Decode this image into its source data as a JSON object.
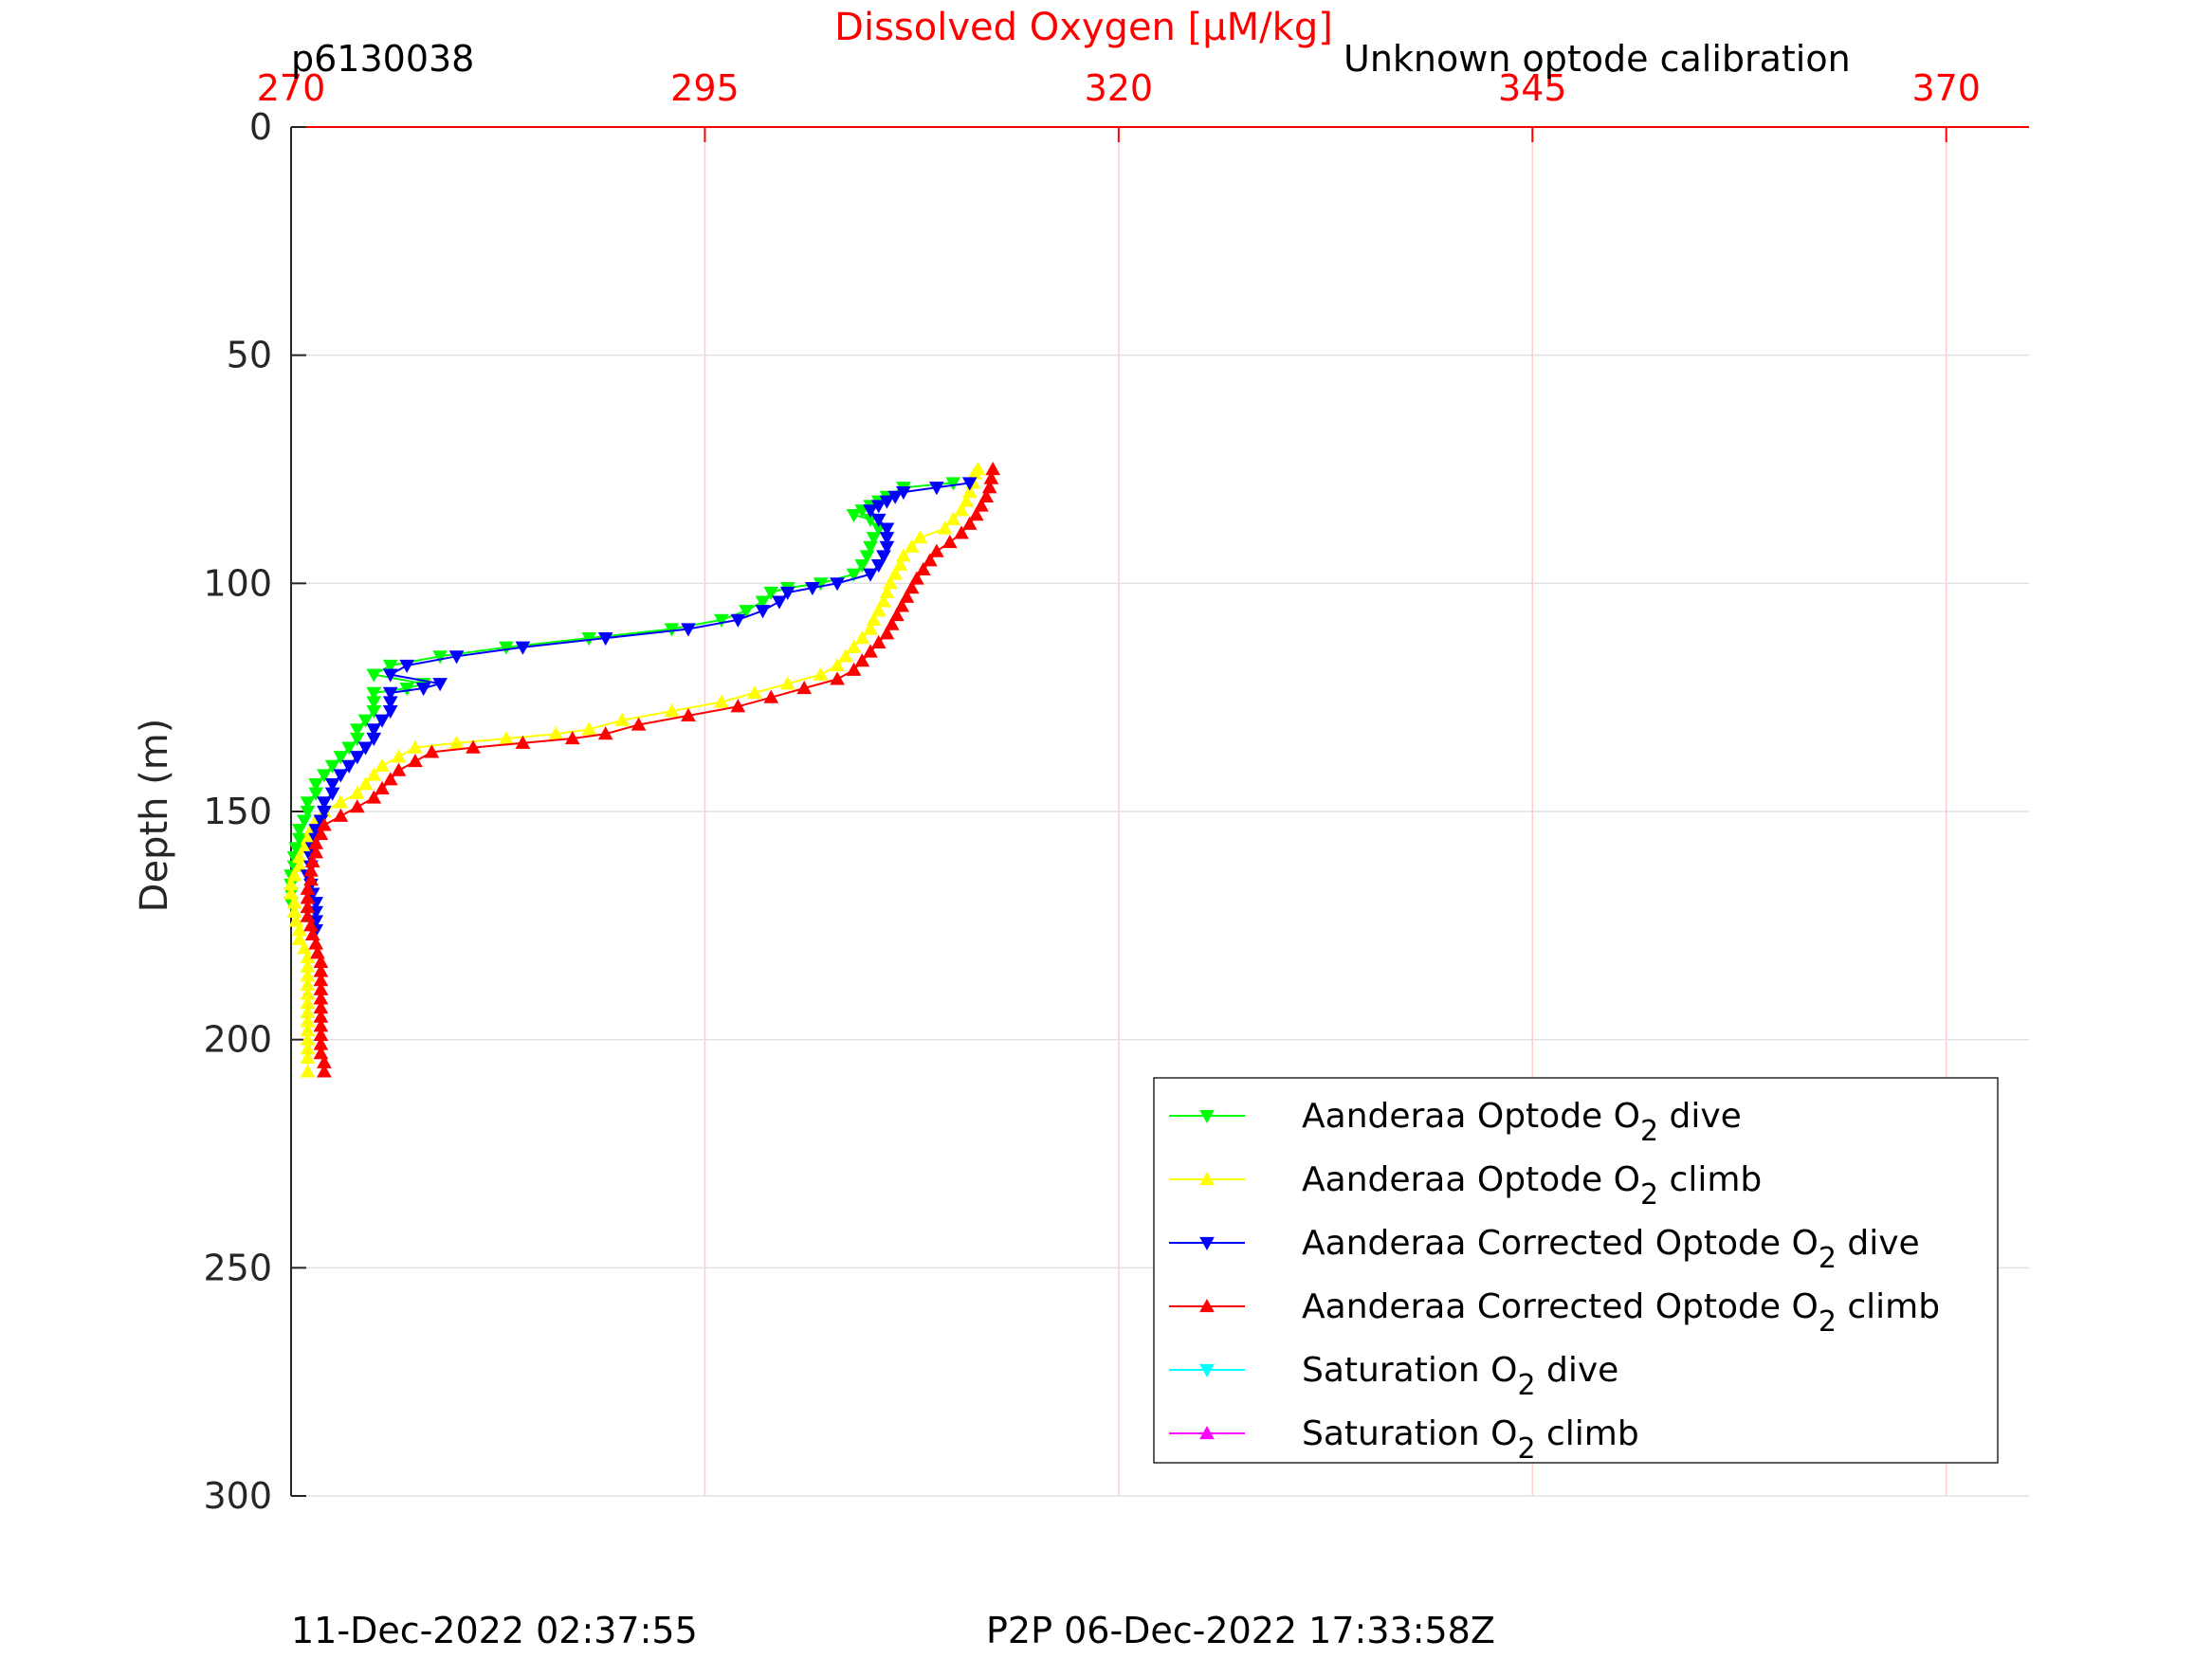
{
  "header": {
    "profile_id": "p6130038",
    "calibration_note": "Unknown optode calibration"
  },
  "footer": {
    "plot_time": "11-Dec-2022 02:37:55",
    "p2p_time": "P2P 06-Dec-2022 17:33:58Z"
  },
  "chart_data": {
    "type": "line",
    "title": "",
    "xlabel": "Dissolved Oxygen [μM/kg]",
    "ylabel": "Depth (m)",
    "xlim": [
      270,
      375
    ],
    "ylim": [
      0,
      300
    ],
    "y_reversed": true,
    "x_axis_position": "top",
    "xticks": [
      270,
      295,
      320,
      345,
      370
    ],
    "yticks": [
      0,
      50,
      100,
      150,
      200,
      250,
      300
    ],
    "grid": true,
    "legend_position": "bottom-right",
    "series": [
      {
        "name": "Aanderaa Optode O2 dive",
        "label_base": "Aanderaa Optode O",
        "label_sub": "2",
        "label_suffix": " dive",
        "color": "#00ff00",
        "marker": "triangle-down",
        "points": [
          [
            310.0,
            78
          ],
          [
            307.0,
            79
          ],
          [
            306.0,
            81
          ],
          [
            305.5,
            82
          ],
          [
            305.0,
            83
          ],
          [
            304.5,
            84
          ],
          [
            304.0,
            85
          ],
          [
            305.0,
            86
          ],
          [
            305.5,
            88
          ],
          [
            305.2,
            90
          ],
          [
            305.0,
            92
          ],
          [
            304.8,
            94
          ],
          [
            304.5,
            96
          ],
          [
            304.0,
            98
          ],
          [
            302.0,
            100
          ],
          [
            300.0,
            101
          ],
          [
            299.0,
            102
          ],
          [
            298.5,
            104
          ],
          [
            297.5,
            106
          ],
          [
            296.0,
            108
          ],
          [
            293.0,
            110
          ],
          [
            288.0,
            112
          ],
          [
            283.0,
            114
          ],
          [
            279.0,
            116
          ],
          [
            276.0,
            118
          ],
          [
            275.0,
            120
          ],
          [
            278.0,
            122
          ],
          [
            277.0,
            123
          ],
          [
            275.0,
            124
          ],
          [
            275.0,
            126
          ],
          [
            275.0,
            128
          ],
          [
            274.5,
            130
          ],
          [
            274.0,
            132
          ],
          [
            274.0,
            134
          ],
          [
            273.5,
            136
          ],
          [
            273.0,
            138
          ],
          [
            272.5,
            140
          ],
          [
            272.0,
            142
          ],
          [
            271.5,
            144
          ],
          [
            271.5,
            146
          ],
          [
            271.0,
            148
          ],
          [
            271.0,
            150
          ],
          [
            270.8,
            152
          ],
          [
            270.5,
            154
          ],
          [
            270.5,
            156
          ],
          [
            270.3,
            158
          ],
          [
            270.2,
            160
          ],
          [
            270.2,
            162
          ],
          [
            270.0,
            164
          ],
          [
            270.0,
            166
          ],
          [
            270.0,
            168
          ],
          [
            270.0,
            170
          ]
        ]
      },
      {
        "name": "Aanderaa Optode O2 climb",
        "label_base": "Aanderaa Optode O",
        "label_sub": "2",
        "label_suffix": " climb",
        "color": "#ffff00",
        "marker": "triangle-up",
        "points": [
          [
            271.0,
            207
          ],
          [
            271.0,
            204
          ],
          [
            271.0,
            202
          ],
          [
            271.0,
            200
          ],
          [
            271.0,
            198
          ],
          [
            271.0,
            196
          ],
          [
            271.0,
            194
          ],
          [
            271.0,
            192
          ],
          [
            271.0,
            190
          ],
          [
            271.0,
            188
          ],
          [
            271.0,
            186
          ],
          [
            271.0,
            184
          ],
          [
            271.0,
            182
          ],
          [
            270.8,
            180
          ],
          [
            270.5,
            178
          ],
          [
            270.5,
            176
          ],
          [
            270.3,
            174
          ],
          [
            270.2,
            172
          ],
          [
            270.2,
            170
          ],
          [
            270.0,
            168
          ],
          [
            270.0,
            166
          ],
          [
            270.2,
            164
          ],
          [
            270.5,
            162
          ],
          [
            270.5,
            160
          ],
          [
            270.8,
            158
          ],
          [
            271.0,
            156
          ],
          [
            271.2,
            154
          ],
          [
            271.5,
            152
          ],
          [
            272.0,
            150
          ],
          [
            273.0,
            148
          ],
          [
            274.0,
            146
          ],
          [
            274.5,
            144
          ],
          [
            275.0,
            142
          ],
          [
            275.5,
            140
          ],
          [
            276.5,
            138
          ],
          [
            277.5,
            136
          ],
          [
            280.0,
            135
          ],
          [
            283.0,
            134
          ],
          [
            286.0,
            133
          ],
          [
            288.0,
            132
          ],
          [
            290.0,
            130
          ],
          [
            293.0,
            128
          ],
          [
            296.0,
            126
          ],
          [
            298.0,
            124
          ],
          [
            300.0,
            122
          ],
          [
            302.0,
            120
          ],
          [
            303.0,
            118
          ],
          [
            303.5,
            116
          ],
          [
            304.0,
            114
          ],
          [
            304.5,
            112
          ],
          [
            305.0,
            110
          ],
          [
            305.2,
            108
          ],
          [
            305.5,
            106
          ],
          [
            305.8,
            104
          ],
          [
            306.0,
            102
          ],
          [
            306.2,
            100
          ],
          [
            306.5,
            98
          ],
          [
            306.8,
            96
          ],
          [
            307.0,
            94
          ],
          [
            307.5,
            92
          ],
          [
            308.0,
            90
          ],
          [
            309.5,
            88
          ],
          [
            310.0,
            86
          ],
          [
            310.5,
            84
          ],
          [
            310.8,
            82
          ],
          [
            311.0,
            80
          ],
          [
            311.2,
            78
          ],
          [
            311.3,
            76
          ],
          [
            311.5,
            75
          ]
        ]
      },
      {
        "name": "Aanderaa Corrected Optode O2 dive",
        "label_base": "Aanderaa Corrected Optode O",
        "label_sub": "2",
        "label_suffix": " dive",
        "color": "#0000ff",
        "marker": "triangle-down",
        "points": [
          [
            311.0,
            78
          ],
          [
            309.0,
            79
          ],
          [
            307.0,
            80
          ],
          [
            306.5,
            81
          ],
          [
            306.0,
            82
          ],
          [
            305.5,
            83
          ],
          [
            305.0,
            84
          ],
          [
            305.5,
            86
          ],
          [
            306.0,
            88
          ],
          [
            306.0,
            90
          ],
          [
            306.0,
            92
          ],
          [
            305.8,
            94
          ],
          [
            305.5,
            96
          ],
          [
            305.0,
            98
          ],
          [
            303.0,
            100
          ],
          [
            301.5,
            101
          ],
          [
            300.0,
            102
          ],
          [
            299.5,
            104
          ],
          [
            298.5,
            106
          ],
          [
            297.0,
            108
          ],
          [
            294.0,
            110
          ],
          [
            289.0,
            112
          ],
          [
            284.0,
            114
          ],
          [
            280.0,
            116
          ],
          [
            277.0,
            118
          ],
          [
            276.0,
            120
          ],
          [
            279.0,
            122
          ],
          [
            278.0,
            123
          ],
          [
            276.0,
            124
          ],
          [
            276.0,
            126
          ],
          [
            276.0,
            128
          ],
          [
            275.5,
            130
          ],
          [
            275.0,
            132
          ],
          [
            275.0,
            134
          ],
          [
            274.5,
            136
          ],
          [
            274.0,
            138
          ],
          [
            273.5,
            140
          ],
          [
            273.0,
            142
          ],
          [
            272.5,
            144
          ],
          [
            272.5,
            146
          ],
          [
            272.0,
            148
          ],
          [
            272.0,
            150
          ],
          [
            271.8,
            152
          ],
          [
            271.5,
            154
          ],
          [
            271.5,
            156
          ],
          [
            271.3,
            158
          ],
          [
            271.2,
            160
          ],
          [
            271.2,
            162
          ],
          [
            271.0,
            164
          ],
          [
            271.2,
            166
          ],
          [
            271.3,
            168
          ],
          [
            271.5,
            170
          ],
          [
            271.5,
            172
          ],
          [
            271.5,
            174
          ],
          [
            271.5,
            176
          ]
        ]
      },
      {
        "name": "Aanderaa Corrected Optode O2 climb",
        "label_base": "Aanderaa Corrected Optode O",
        "label_sub": "2",
        "label_suffix": " climb",
        "color": "#ff0000",
        "marker": "triangle-up",
        "points": [
          [
            272.0,
            207
          ],
          [
            272.0,
            205
          ],
          [
            271.8,
            203
          ],
          [
            271.8,
            201
          ],
          [
            271.8,
            199
          ],
          [
            271.8,
            197
          ],
          [
            271.8,
            195
          ],
          [
            271.8,
            193
          ],
          [
            271.8,
            191
          ],
          [
            271.8,
            189
          ],
          [
            271.8,
            187
          ],
          [
            271.8,
            185
          ],
          [
            271.8,
            183
          ],
          [
            271.6,
            181
          ],
          [
            271.5,
            179
          ],
          [
            271.3,
            177
          ],
          [
            271.2,
            175
          ],
          [
            271.0,
            173
          ],
          [
            271.0,
            171
          ],
          [
            271.0,
            169
          ],
          [
            271.0,
            167
          ],
          [
            271.2,
            165
          ],
          [
            271.2,
            163
          ],
          [
            271.3,
            161
          ],
          [
            271.5,
            159
          ],
          [
            271.5,
            157
          ],
          [
            271.8,
            155
          ],
          [
            272.0,
            153
          ],
          [
            273.0,
            151
          ],
          [
            274.0,
            149
          ],
          [
            275.0,
            147
          ],
          [
            275.5,
            145
          ],
          [
            276.0,
            143
          ],
          [
            276.5,
            141
          ],
          [
            277.5,
            139
          ],
          [
            278.5,
            137
          ],
          [
            281.0,
            136
          ],
          [
            284.0,
            135
          ],
          [
            287.0,
            134
          ],
          [
            289.0,
            133
          ],
          [
            291.0,
            131
          ],
          [
            294.0,
            129
          ],
          [
            297.0,
            127
          ],
          [
            299.0,
            125
          ],
          [
            301.0,
            123
          ],
          [
            303.0,
            121
          ],
          [
            304.0,
            119
          ],
          [
            304.5,
            117
          ],
          [
            305.0,
            115
          ],
          [
            305.5,
            113
          ],
          [
            306.0,
            111
          ],
          [
            306.3,
            109
          ],
          [
            306.6,
            107
          ],
          [
            306.9,
            105
          ],
          [
            307.2,
            103
          ],
          [
            307.5,
            101
          ],
          [
            307.8,
            99
          ],
          [
            308.2,
            97
          ],
          [
            308.6,
            95
          ],
          [
            309.0,
            93
          ],
          [
            309.8,
            91
          ],
          [
            310.5,
            89
          ],
          [
            311.0,
            87
          ],
          [
            311.4,
            85
          ],
          [
            311.7,
            83
          ],
          [
            312.0,
            81
          ],
          [
            312.2,
            79
          ],
          [
            312.3,
            77
          ],
          [
            312.4,
            75
          ]
        ]
      },
      {
        "name": "Saturation O2 dive",
        "label_base": "Saturation O",
        "label_sub": "2",
        "label_suffix": " dive",
        "color": "#00ffff",
        "marker": "triangle-down",
        "points": []
      },
      {
        "name": "Saturation O2 climb",
        "label_base": "Saturation O",
        "label_sub": "2",
        "label_suffix": " climb",
        "color": "#ff00ff",
        "marker": "triangle-up",
        "points": []
      }
    ]
  }
}
